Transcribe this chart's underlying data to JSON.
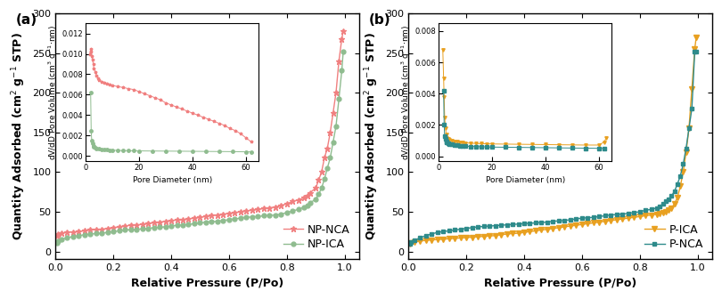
{
  "panel_a": {
    "label": "(a)",
    "xlabel": "Relative Pressure (P/Po)",
    "ylabel": "Quantity Adsorbed (cm$^2$ g$^{-1}$ STP)",
    "xlim": [
      0.0,
      1.05
    ],
    "ylim": [
      -10,
      300
    ],
    "yticks": [
      0,
      50,
      100,
      150,
      200,
      250,
      300
    ],
    "xticks": [
      0.0,
      0.2,
      0.4,
      0.6,
      0.8,
      1.0
    ],
    "series": [
      {
        "name": "NP-NCA",
        "color": "#F08080",
        "marker": "*",
        "markersize": 5,
        "linewidth": 1.0,
        "x": [
          0.005,
          0.01,
          0.02,
          0.04,
          0.06,
          0.08,
          0.1,
          0.12,
          0.14,
          0.16,
          0.18,
          0.2,
          0.22,
          0.24,
          0.26,
          0.28,
          0.3,
          0.32,
          0.34,
          0.36,
          0.38,
          0.4,
          0.42,
          0.44,
          0.46,
          0.48,
          0.5,
          0.52,
          0.54,
          0.56,
          0.58,
          0.6,
          0.62,
          0.64,
          0.66,
          0.68,
          0.7,
          0.72,
          0.74,
          0.76,
          0.78,
          0.8,
          0.82,
          0.84,
          0.86,
          0.87,
          0.88,
          0.9,
          0.91,
          0.92,
          0.93,
          0.94,
          0.95,
          0.96,
          0.97,
          0.98,
          0.99,
          0.995
        ],
        "y": [
          20,
          22,
          23,
          24,
          24.5,
          25,
          26,
          27,
          27.5,
          28,
          29,
          30,
          31,
          32,
          33,
          33.5,
          34,
          35,
          36,
          37,
          38,
          39,
          39.5,
          40,
          41,
          42,
          43,
          44,
          45,
          46,
          47,
          48,
          49,
          50,
          51,
          52,
          53,
          54,
          55,
          56,
          58,
          60,
          63,
          65,
          68,
          70,
          74,
          80,
          90,
          100,
          118,
          130,
          150,
          175,
          200,
          240,
          268,
          278
        ]
      },
      {
        "name": "NP-ICA",
        "color": "#8FBC8F",
        "marker": "o",
        "markersize": 3.5,
        "linewidth": 1.0,
        "x": [
          0.005,
          0.01,
          0.02,
          0.04,
          0.06,
          0.08,
          0.1,
          0.12,
          0.14,
          0.16,
          0.18,
          0.2,
          0.22,
          0.24,
          0.26,
          0.28,
          0.3,
          0.32,
          0.34,
          0.36,
          0.38,
          0.4,
          0.42,
          0.44,
          0.46,
          0.48,
          0.5,
          0.52,
          0.54,
          0.56,
          0.58,
          0.6,
          0.62,
          0.64,
          0.66,
          0.68,
          0.7,
          0.72,
          0.74,
          0.76,
          0.78,
          0.8,
          0.82,
          0.84,
          0.86,
          0.87,
          0.88,
          0.9,
          0.91,
          0.92,
          0.93,
          0.94,
          0.95,
          0.96,
          0.97,
          0.98,
          0.99,
          0.995
        ],
        "y": [
          11,
          13,
          15,
          17,
          19,
          20,
          21,
          22,
          22.5,
          23,
          24,
          25,
          26,
          27,
          27.5,
          28,
          28.5,
          29,
          30,
          30.5,
          31,
          32,
          33,
          33.5,
          34,
          35,
          36,
          37,
          37.5,
          38,
          39,
          40,
          41,
          42,
          43,
          43.5,
          44,
          45,
          45.5,
          46,
          47,
          49,
          51,
          53,
          56,
          58,
          61,
          66,
          72,
          80,
          91,
          105,
          118,
          138,
          158,
          192,
          228,
          252
        ]
      }
    ],
    "inset": {
      "xlabel": "Pore Diameter (nm)",
      "ylabel": "dV/dD Pore Volume (cm$^3$ g$^{-1}$$\\cdot$nm)",
      "xlim": [
        0,
        65
      ],
      "ylim": [
        -0.0005,
        0.013
      ],
      "yticks": [
        0.0,
        0.002,
        0.004,
        0.006,
        0.008,
        0.01,
        0.012
      ],
      "xticks": [
        0,
        20,
        40,
        60
      ],
      "series": [
        {
          "color": "#F08080",
          "marker": "*",
          "markersize": 2.5,
          "x": [
            1.5,
            1.8,
            2.0,
            2.2,
            2.5,
            2.8,
            3.0,
            3.5,
            4.0,
            4.5,
            5.0,
            6.0,
            7.0,
            8.0,
            9.0,
            10.0,
            12.0,
            14.0,
            16.0,
            18.0,
            20.0,
            22.0,
            24.0,
            26.0,
            28.0,
            30.0,
            32.0,
            34.0,
            36.0,
            38.0,
            40.0,
            42.0,
            44.0,
            46.0,
            48.0,
            50.0,
            52.0,
            54.0,
            56.0,
            58.0,
            60.0,
            62.0
          ],
          "y": [
            0.01,
            0.0105,
            0.0102,
            0.0098,
            0.0094,
            0.009,
            0.0086,
            0.0082,
            0.0079,
            0.0076,
            0.0074,
            0.0073,
            0.0072,
            0.0071,
            0.007,
            0.0069,
            0.0068,
            0.0067,
            0.0066,
            0.0065,
            0.0063,
            0.0061,
            0.0059,
            0.0057,
            0.0055,
            0.0052,
            0.005,
            0.0048,
            0.0046,
            0.0044,
            0.0042,
            0.004,
            0.0038,
            0.0036,
            0.0034,
            0.0032,
            0.003,
            0.0027,
            0.0025,
            0.0022,
            0.0018,
            0.0014
          ]
        },
        {
          "color": "#8FBC8F",
          "marker": "o",
          "markersize": 2.5,
          "x": [
            1.8,
            2.0,
            2.2,
            2.5,
            2.8,
            3.0,
            3.5,
            4.0,
            5.0,
            6.0,
            7.0,
            8.0,
            9.0,
            10.0,
            12.0,
            14.0,
            16.0,
            18.0,
            20.0,
            25.0,
            30.0,
            35.0,
            40.0,
            45.0,
            50.0,
            55.0,
            60.0,
            62.0
          ],
          "y": [
            0.0062,
            0.0025,
            0.0015,
            0.0012,
            0.001,
            0.0009,
            0.00082,
            0.00075,
            0.0007,
            0.00065,
            0.00062,
            0.0006,
            0.00058,
            0.00056,
            0.00054,
            0.00052,
            0.00051,
            0.0005,
            0.00049,
            0.00048,
            0.00047,
            0.00046,
            0.00045,
            0.00044,
            0.00043,
            0.00042,
            0.0004,
            0.0004
          ]
        }
      ]
    }
  },
  "panel_b": {
    "label": "(b)",
    "xlabel": "Relative Pressure (P/Po)",
    "ylabel": "Quantity Adsorbed (cm$^2$ g$^{-1}$ STP)",
    "xlim": [
      0.0,
      1.05
    ],
    "ylim": [
      -10,
      300
    ],
    "yticks": [
      0,
      50,
      100,
      150,
      200,
      250,
      300
    ],
    "xticks": [
      0.0,
      0.2,
      0.4,
      0.6,
      0.8,
      1.0
    ],
    "series": [
      {
        "name": "P-ICA",
        "color": "#E8A020",
        "marker": "v",
        "markersize": 4,
        "linewidth": 1.0,
        "x": [
          0.005,
          0.01,
          0.02,
          0.04,
          0.06,
          0.08,
          0.1,
          0.12,
          0.14,
          0.16,
          0.18,
          0.2,
          0.22,
          0.24,
          0.26,
          0.28,
          0.3,
          0.32,
          0.34,
          0.36,
          0.38,
          0.4,
          0.42,
          0.44,
          0.46,
          0.48,
          0.5,
          0.52,
          0.54,
          0.56,
          0.58,
          0.6,
          0.62,
          0.64,
          0.66,
          0.68,
          0.7,
          0.72,
          0.74,
          0.76,
          0.78,
          0.8,
          0.82,
          0.84,
          0.86,
          0.87,
          0.88,
          0.89,
          0.9,
          0.91,
          0.92,
          0.93,
          0.94,
          0.95,
          0.96,
          0.97,
          0.98,
          0.99,
          0.995
        ],
        "y": [
          10,
          11,
          12,
          13,
          14,
          14.5,
          15,
          15.5,
          16,
          16.5,
          17,
          17.5,
          18,
          18.5,
          19,
          19.5,
          20,
          21,
          22,
          22.5,
          23,
          24,
          25,
          26,
          27,
          28,
          29,
          30,
          31,
          32,
          33,
          34,
          35,
          36,
          37,
          38,
          39,
          40,
          41,
          42,
          43,
          44,
          45,
          46,
          47,
          48,
          49,
          50,
          52,
          55,
          60,
          68,
          82,
          100,
          125,
          155,
          205,
          255,
          270
        ]
      },
      {
        "name": "P-NCA",
        "color": "#2E8B8B",
        "marker": "s",
        "markersize": 3.5,
        "linewidth": 1.0,
        "x": [
          0.005,
          0.01,
          0.02,
          0.04,
          0.06,
          0.08,
          0.1,
          0.12,
          0.14,
          0.16,
          0.18,
          0.2,
          0.22,
          0.24,
          0.26,
          0.28,
          0.3,
          0.32,
          0.34,
          0.36,
          0.38,
          0.4,
          0.42,
          0.44,
          0.46,
          0.48,
          0.5,
          0.52,
          0.54,
          0.56,
          0.58,
          0.6,
          0.62,
          0.64,
          0.66,
          0.68,
          0.7,
          0.72,
          0.74,
          0.76,
          0.78,
          0.8,
          0.82,
          0.84,
          0.86,
          0.87,
          0.88,
          0.89,
          0.9,
          0.91,
          0.92,
          0.93,
          0.94,
          0.95,
          0.96,
          0.97,
          0.98,
          0.99,
          0.995
        ],
        "y": [
          10,
          12,
          14,
          17,
          20,
          22,
          24,
          25,
          26,
          27,
          28,
          29,
          30,
          31,
          31.5,
          32,
          32.5,
          33,
          33.5,
          34,
          34.5,
          35,
          35.5,
          36,
          36.5,
          37,
          38,
          38.5,
          39,
          40,
          41,
          42,
          42.5,
          43,
          44,
          45,
          46,
          46.5,
          47,
          48,
          49,
          50,
          52,
          53,
          55,
          57,
          60,
          63,
          66,
          70,
          76,
          85,
          95,
          110,
          130,
          155,
          180,
          252,
          252
        ]
      }
    ],
    "inset": {
      "xlabel": "Pore Diameter (nm)",
      "ylabel": "dV/dD Pore Volume (cm$^3$ g$^{-1}$$\\cdot$nm)",
      "xlim": [
        0,
        65
      ],
      "ylim": [
        -0.0003,
        0.0085
      ],
      "yticks": [
        0.0,
        0.002,
        0.004,
        0.006,
        0.008
      ],
      "xticks": [
        0,
        20,
        40,
        60
      ],
      "series": [
        {
          "color": "#E8A020",
          "marker": "v",
          "markersize": 2.5,
          "x": [
            1.5,
            1.8,
            2.0,
            2.2,
            2.5,
            2.8,
            3.0,
            3.5,
            4.0,
            5.0,
            6.0,
            7.0,
            8.0,
            9.0,
            10.0,
            12.0,
            14.0,
            16.0,
            18.0,
            20.0,
            25.0,
            30.0,
            35.0,
            40.0,
            45.0,
            50.0,
            55.0,
            60.0,
            62.0,
            63.0
          ],
          "y": [
            0.0068,
            0.005,
            0.0038,
            0.0025,
            0.0018,
            0.0014,
            0.0012,
            0.0011,
            0.00105,
            0.001,
            0.00096,
            0.00093,
            0.0009,
            0.00088,
            0.00086,
            0.00084,
            0.00082,
            0.00081,
            0.0008,
            0.00079,
            0.00078,
            0.00077,
            0.00076,
            0.00075,
            0.00074,
            0.00073,
            0.00072,
            0.00072,
            0.0009,
            0.0012
          ]
        },
        {
          "color": "#2E8B8B",
          "marker": "s",
          "markersize": 2.5,
          "x": [
            1.8,
            2.0,
            2.2,
            2.5,
            2.8,
            3.0,
            3.5,
            4.0,
            5.0,
            6.0,
            7.0,
            8.0,
            9.0,
            10.0,
            12.0,
            14.0,
            16.0,
            18.0,
            20.0,
            25.0,
            30.0,
            35.0,
            40.0,
            45.0,
            50.0,
            55.0,
            60.0,
            62.0
          ],
          "y": [
            0.0042,
            0.002,
            0.0013,
            0.0011,
            0.00095,
            0.00088,
            0.00082,
            0.00078,
            0.00075,
            0.00072,
            0.0007,
            0.00068,
            0.00066,
            0.00065,
            0.00063,
            0.00062,
            0.00061,
            0.0006,
            0.00059,
            0.00058,
            0.00057,
            0.00056,
            0.00055,
            0.00054,
            0.00053,
            0.00052,
            0.00051,
            0.0005
          ]
        }
      ]
    }
  },
  "bg_color": "#ffffff",
  "axis_color": "#000000",
  "font_size_label": 9,
  "font_size_tick": 8,
  "font_size_inset_label": 6.5,
  "font_size_inset_tick": 6,
  "font_size_panel_label": 11
}
